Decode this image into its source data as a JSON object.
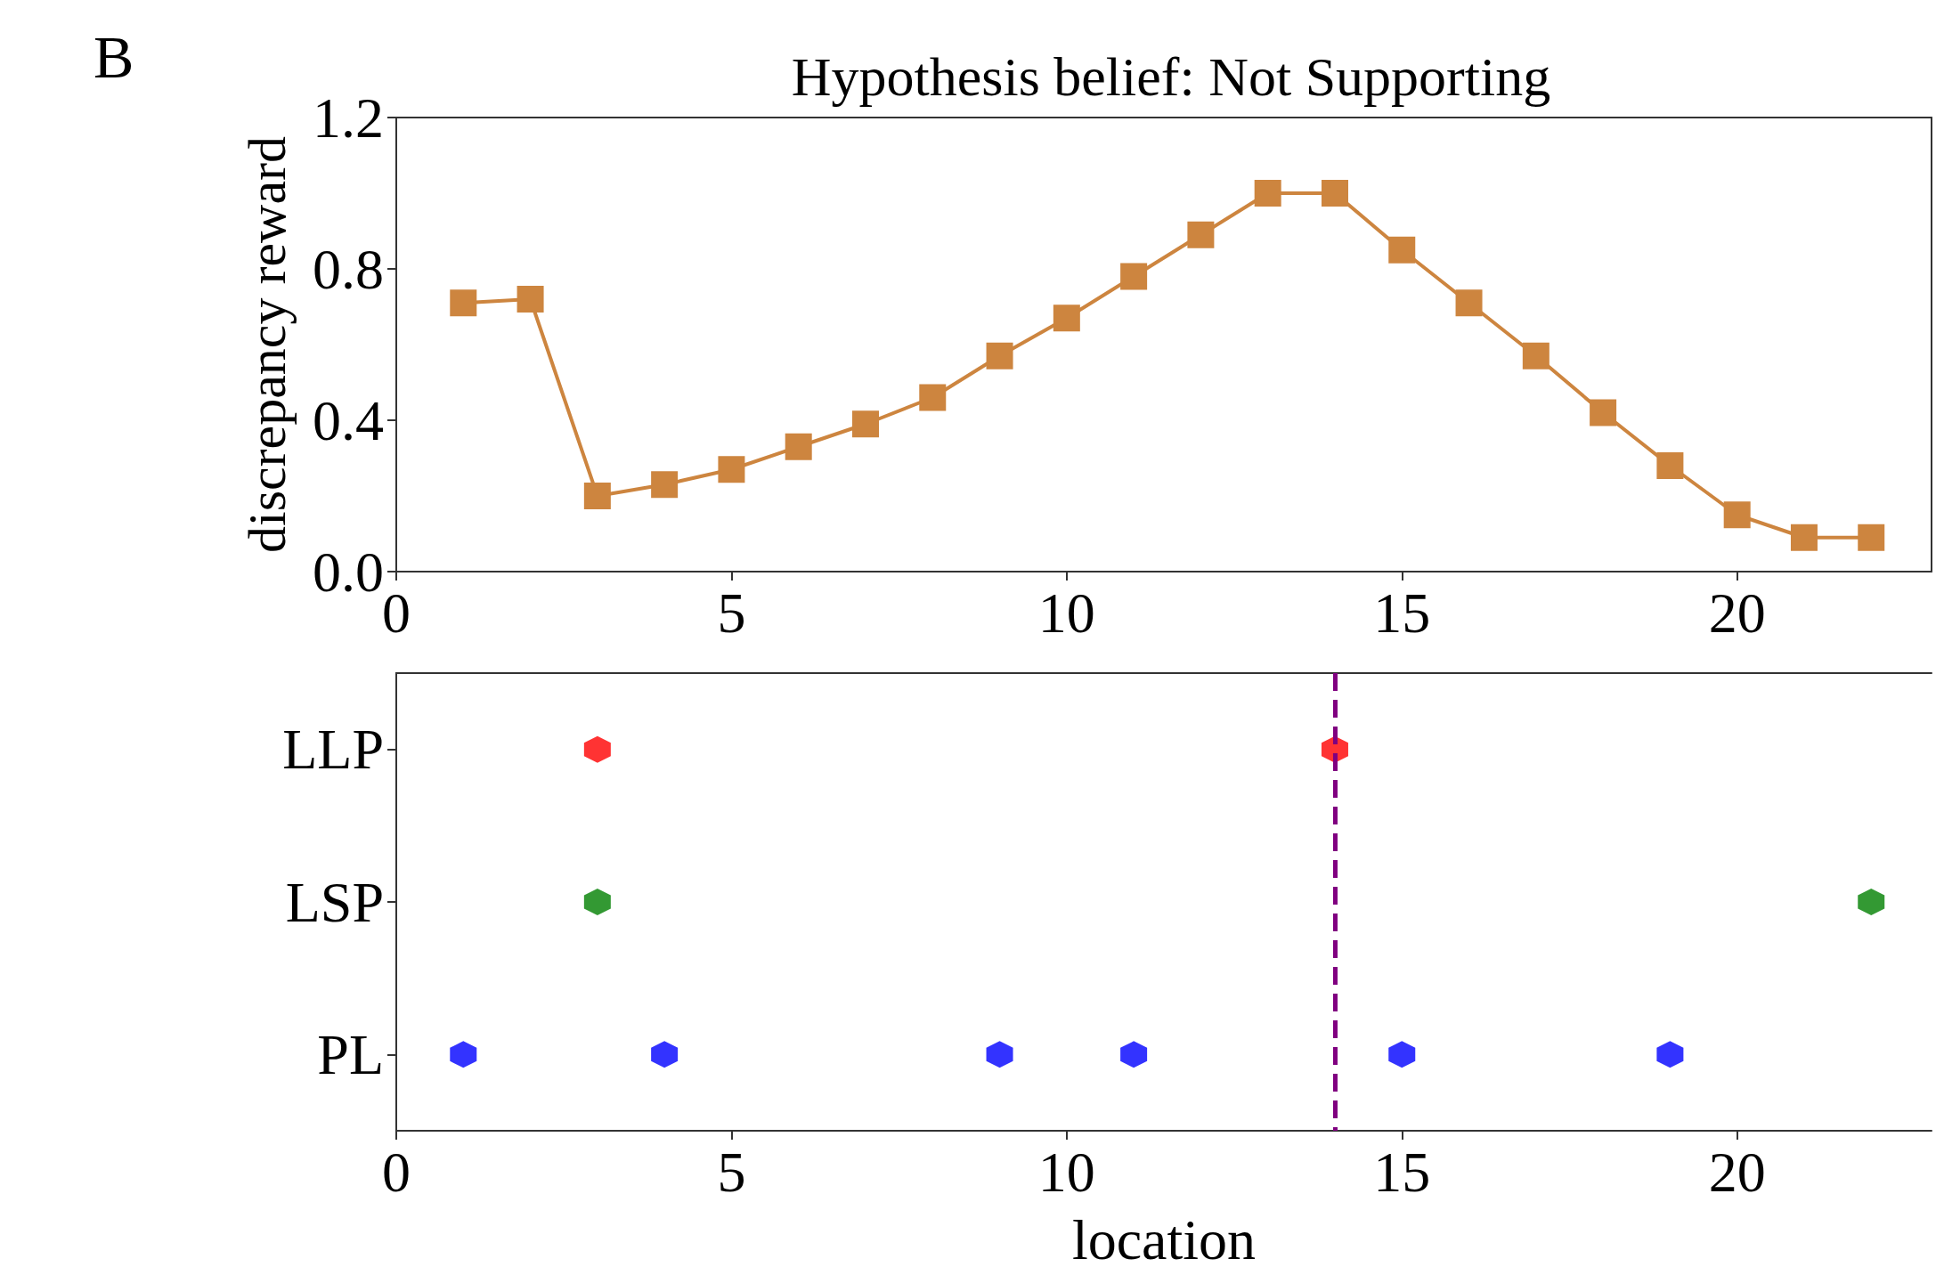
{
  "chart_data": [
    {
      "type": "line",
      "title": "Hypothesis belief: Not Supporting",
      "ylabel": "discrepancy reward",
      "annotations": [
        "B"
      ],
      "x": [
        1,
        2,
        3,
        4,
        5,
        6,
        7,
        8,
        9,
        10,
        11,
        12,
        13,
        14,
        15,
        16,
        17,
        18,
        19,
        20,
        21,
        22
      ],
      "series": [
        {
          "color": "#cd853f",
          "values": [
            0.71,
            0.72,
            0.2,
            0.23,
            0.27,
            0.33,
            0.39,
            0.46,
            0.57,
            0.67,
            0.78,
            0.89,
            1.0,
            1.0,
            0.85,
            0.71,
            0.57,
            0.42,
            0.28,
            0.15,
            0.09,
            0.09
          ]
        }
      ],
      "xlim": [
        0,
        22.9
      ],
      "xticks": [
        0,
        5,
        10,
        15,
        20
      ],
      "ylim": [
        0,
        1.2
      ],
      "yticks": [
        {
          "value": 0,
          "label": "0.0"
        },
        0.4,
        0.8,
        1.2
      ],
      "marker": "square",
      "line_style": "solid"
    },
    {
      "type": "scatter",
      "orientation": "horizontal",
      "xlabel": "location",
      "categories": [
        "LLP",
        "LSP",
        "PL"
      ],
      "series": [
        {
          "color": "#ff0000",
          "x": [
            "LLP",
            "LLP"
          ],
          "values": [
            3,
            14
          ]
        },
        {
          "color": "#008000",
          "x": [
            "LSP",
            "LSP"
          ],
          "values": [
            3,
            22
          ]
        },
        {
          "color": "#0000ff",
          "x": [
            "PL",
            "PL",
            "PL",
            "PL",
            "PL",
            "PL"
          ],
          "values": [
            1,
            4,
            9,
            11,
            15,
            19
          ]
        }
      ],
      "xlim": [
        0,
        22.9
      ],
      "xticks": [
        0,
        5,
        10,
        15,
        20
      ],
      "ref_lines": [
        {
          "axis": "x",
          "value": 14,
          "color": "#800080",
          "line_style": "dashed"
        }
      ]
    }
  ]
}
